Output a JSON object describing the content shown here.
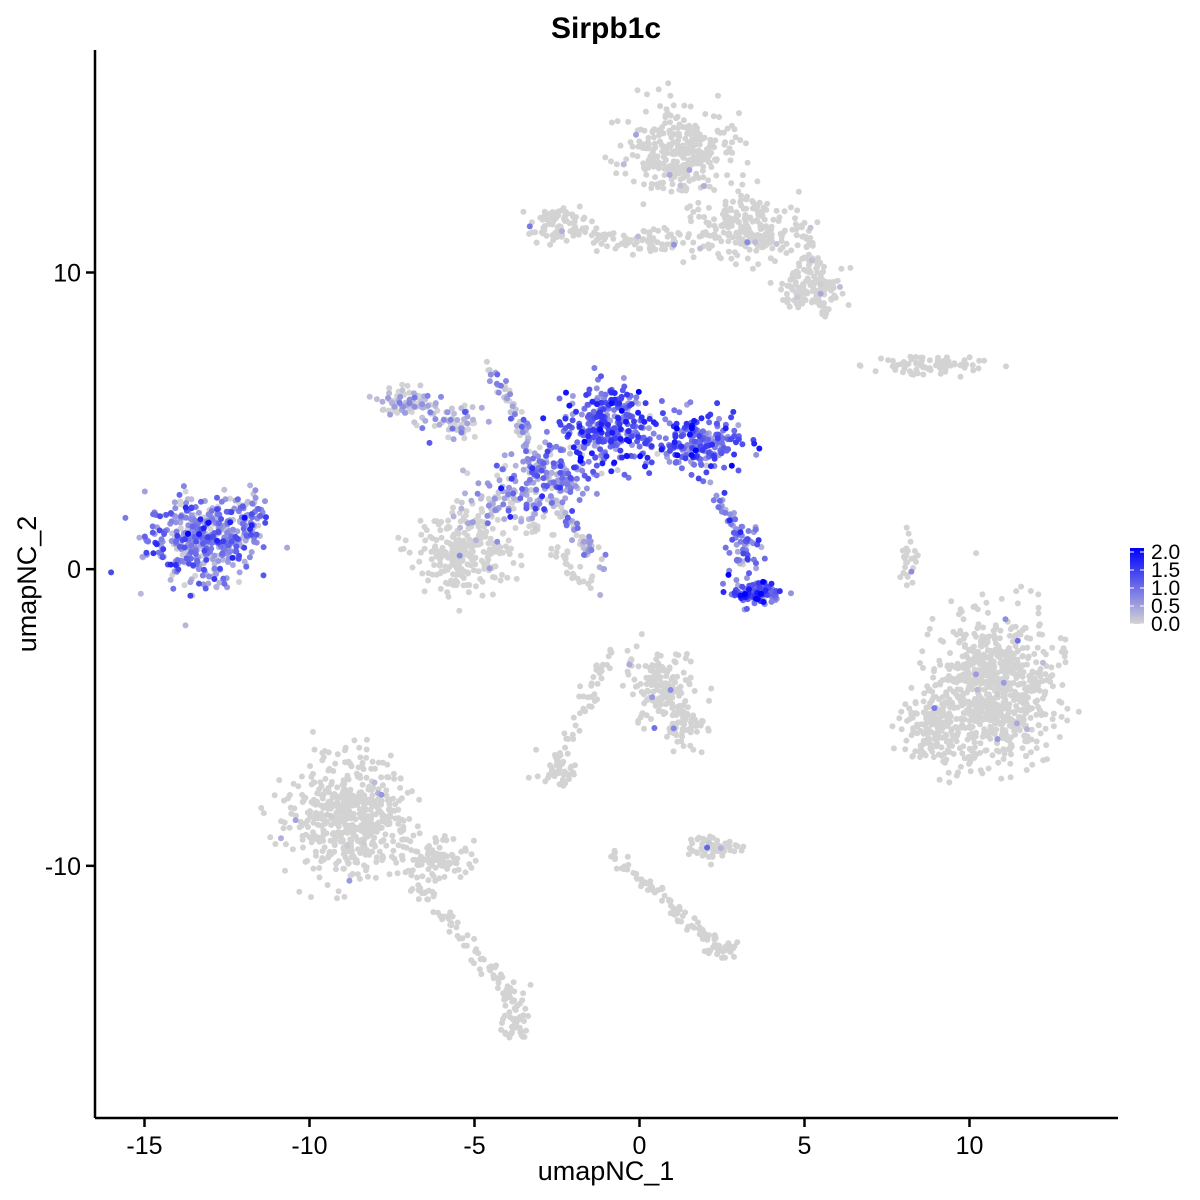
{
  "chart_data": {
    "type": "scatter",
    "title": "Sirpb1c",
    "xlabel": "umapNC_1",
    "ylabel": "umapNC_2",
    "xlim": [
      -16.5,
      14.5
    ],
    "ylim": [
      -18.5,
      17.5
    ],
    "xticks": [
      -15,
      -10,
      -5,
      0,
      5,
      10
    ],
    "xtick_labels": [
      "-15",
      "-10",
      "-5",
      "0",
      "5",
      "10"
    ],
    "yticks": [
      -10,
      0,
      10
    ],
    "ytick_labels": [
      "-10",
      "0",
      "10"
    ],
    "grid": false,
    "color_scale": {
      "low_color": "#d3d3d3",
      "high_color": "#0000ff",
      "range": [
        0,
        2.0
      ],
      "labels": [
        "2.0",
        "1.5",
        "1.0",
        "0.5",
        "0.0"
      ],
      "values": [
        2.0,
        1.5,
        1.0,
        0.5,
        0.0
      ],
      "legend_position": "right"
    },
    "clusters": [
      {
        "cx": -13.3,
        "cy": 1.0,
        "sx": 1.0,
        "sy": 0.9,
        "n": 420,
        "expr": 0.65
      },
      {
        "cx": -11.8,
        "cy": 1.8,
        "sx": 0.35,
        "sy": 0.6,
        "n": 60,
        "expr": 0.6
      },
      {
        "cx": -1.0,
        "cy": 4.8,
        "sx": 0.8,
        "sy": 0.9,
        "n": 320,
        "expr": 1.0
      },
      {
        "cx": 1.8,
        "cy": 4.2,
        "sx": 0.8,
        "sy": 0.6,
        "n": 220,
        "expr": 0.95
      },
      {
        "cx": -2.8,
        "cy": 3.2,
        "sx": 0.9,
        "sy": 0.6,
        "n": 140,
        "expr": 0.6
      },
      {
        "cx": -4.0,
        "cy": 2.3,
        "sx": 0.8,
        "sy": 0.6,
        "n": 90,
        "expr": 0.35
      },
      {
        "cx": 3.5,
        "cy": -0.8,
        "sx": 0.5,
        "sy": 0.25,
        "n": 110,
        "expr": 1.1
      },
      {
        "cx": 3.2,
        "cy": 0.6,
        "sx": 0.3,
        "sy": 0.5,
        "n": 50,
        "expr": 0.8
      },
      {
        "cx": -5.3,
        "cy": 0.5,
        "sx": 1.0,
        "sy": 0.8,
        "n": 260,
        "expr": 0.08
      },
      {
        "cx": -7.0,
        "cy": 5.6,
        "sx": 0.5,
        "sy": 0.3,
        "n": 80,
        "expr": 0.1
      },
      {
        "cx": -5.7,
        "cy": 4.9,
        "sx": 0.6,
        "sy": 0.4,
        "n": 60,
        "expr": 0.15
      },
      {
        "cx": 1.2,
        "cy": 14.0,
        "sx": 1.0,
        "sy": 0.9,
        "n": 320,
        "expr": 0.01
      },
      {
        "cx": 3.2,
        "cy": 11.5,
        "sx": 1.0,
        "sy": 0.7,
        "n": 220,
        "expr": 0.01
      },
      {
        "cx": 5.2,
        "cy": 9.6,
        "sx": 0.6,
        "sy": 0.5,
        "n": 120,
        "expr": 0.01
      },
      {
        "cx": -2.5,
        "cy": 11.6,
        "sx": 0.6,
        "sy": 0.4,
        "n": 70,
        "expr": 0.02
      },
      {
        "cx": 0.3,
        "cy": 11.0,
        "sx": 0.9,
        "sy": 0.25,
        "n": 60,
        "expr": 0.01
      },
      {
        "cx": 8.8,
        "cy": 6.9,
        "sx": 1.1,
        "sy": 0.2,
        "n": 70,
        "expr": 0.0
      },
      {
        "cx": 10.7,
        "cy": -4.0,
        "sx": 1.1,
        "sy": 1.5,
        "n": 800,
        "expr": 0.01
      },
      {
        "cx": 8.8,
        "cy": -5.4,
        "sx": 0.5,
        "sy": 0.8,
        "n": 130,
        "expr": 0.0
      },
      {
        "cx": -8.8,
        "cy": -8.4,
        "sx": 1.1,
        "sy": 1.2,
        "n": 520,
        "expr": 0.01
      },
      {
        "cx": -6.3,
        "cy": -9.8,
        "sx": 0.8,
        "sy": 0.4,
        "n": 100,
        "expr": 0.0
      },
      {
        "cx": -3.8,
        "cy": -15.0,
        "sx": 0.25,
        "sy": 0.6,
        "n": 50,
        "expr": 0.0
      },
      {
        "cx": 0.7,
        "cy": -4.0,
        "sx": 0.7,
        "sy": 0.8,
        "n": 170,
        "expr": 0.05
      },
      {
        "cx": 1.3,
        "cy": -5.2,
        "sx": 0.4,
        "sy": 0.5,
        "n": 60,
        "expr": 0.02
      },
      {
        "cx": -2.5,
        "cy": -6.8,
        "sx": 0.4,
        "sy": 0.25,
        "n": 40,
        "expr": 0.05
      },
      {
        "cx": 2.3,
        "cy": -9.4,
        "sx": 0.5,
        "sy": 0.3,
        "n": 60,
        "expr": 0.03
      },
      {
        "cx": 2.5,
        "cy": -12.8,
        "sx": 0.3,
        "sy": 0.2,
        "n": 30,
        "expr": 0.0
      },
      {
        "cx": 8.2,
        "cy": 0.3,
        "sx": 0.15,
        "sy": 0.6,
        "n": 25,
        "expr": 0.03
      }
    ],
    "strands": [
      {
        "from": [
          -4.5,
          6.8
        ],
        "to": [
          -3.0,
          3.5
        ],
        "n": 60,
        "expr": 0.2
      },
      {
        "from": [
          -2.8,
          2.5
        ],
        "to": [
          -1.0,
          0.0
        ],
        "n": 60,
        "expr": 0.3
      },
      {
        "from": [
          -0.9,
          -2.8
        ],
        "to": [
          -2.6,
          -6.7
        ],
        "n": 50,
        "expr": 0.0
      },
      {
        "from": [
          -0.9,
          -9.6
        ],
        "to": [
          2.5,
          -12.8
        ],
        "n": 80,
        "expr": 0.0
      },
      {
        "from": [
          -7.0,
          -10.2
        ],
        "to": [
          -3.8,
          -14.5
        ],
        "n": 70,
        "expr": 0.0
      },
      {
        "from": [
          5.6,
          8.5
        ],
        "to": [
          5.0,
          11.5
        ],
        "n": 40,
        "expr": 0.01
      },
      {
        "from": [
          2.3,
          2.6
        ],
        "to": [
          3.2,
          1.0
        ],
        "n": 25,
        "expr": 0.7
      },
      {
        "from": [
          -3.4,
          1.5
        ],
        "to": [
          -1.2,
          -0.8
        ],
        "n": 40,
        "expr": 0.05
      },
      {
        "from": [
          -2.8,
          11.6
        ],
        "to": [
          -0.3,
          11.0
        ],
        "n": 40,
        "expr": 0.05
      }
    ]
  }
}
